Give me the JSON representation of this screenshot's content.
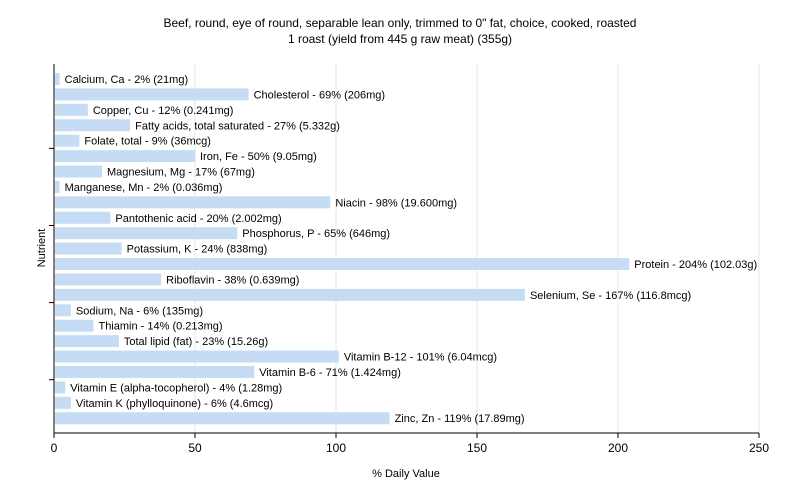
{
  "chart_data": {
    "type": "bar",
    "orientation": "horizontal",
    "title": "Beef, round, eye of round, separable lean only, trimmed to 0\" fat, choice, cooked, roasted",
    "subtitle": "1 roast (yield from 445 g raw meat) (355g)",
    "xlabel": "% Daily Value",
    "ylabel": "Nutrient",
    "xlim": [
      0,
      250
    ],
    "xticks": [
      0,
      50,
      100,
      150,
      200,
      250
    ],
    "grid": true,
    "bar_color": "#c6dcf5",
    "categories": [
      "Calcium, Ca",
      "Cholesterol",
      "Copper, Cu",
      "Fatty acids, total saturated",
      "Folate, total",
      "Iron, Fe",
      "Magnesium, Mg",
      "Manganese, Mn",
      "Niacin",
      "Pantothenic acid",
      "Phosphorus, P",
      "Potassium, K",
      "Protein",
      "Riboflavin",
      "Selenium, Se",
      "Sodium, Na",
      "Thiamin",
      "Total lipid (fat)",
      "Vitamin B-12",
      "Vitamin B-6",
      "Vitamin E (alpha-tocopherol)",
      "Vitamin K (phylloquinone)",
      "Zinc, Zn"
    ],
    "values": [
      2,
      69,
      12,
      27,
      9,
      50,
      17,
      2,
      98,
      20,
      65,
      24,
      204,
      38,
      167,
      6,
      14,
      23,
      101,
      71,
      4,
      6,
      119
    ],
    "labels": [
      "Calcium, Ca - 2% (21mg)",
      "Cholesterol - 69% (206mg)",
      "Copper, Cu - 12% (0.241mg)",
      "Fatty acids, total saturated - 27% (5.332g)",
      "Folate, total - 9% (36mcg)",
      "Iron, Fe - 50% (9.05mg)",
      "Magnesium, Mg - 17% (67mg)",
      "Manganese, Mn - 2% (0.036mg)",
      "Niacin - 98% (19.600mg)",
      "Pantothenic acid - 20% (2.002mg)",
      "Phosphorus, P - 65% (646mg)",
      "Potassium, K - 24% (838mg)",
      "Protein - 204% (102.03g)",
      "Riboflavin - 38% (0.639mg)",
      "Selenium, Se - 167% (116.8mcg)",
      "Sodium, Na - 6% (135mg)",
      "Thiamin - 14% (0.213mg)",
      "Total lipid (fat) - 23% (15.26g)",
      "Vitamin B-12 - 101% (6.04mcg)",
      "Vitamin B-6 - 71% (1.424mg)",
      "Vitamin E (alpha-tocopherol) - 4% (1.28mg)",
      "Vitamin K (phylloquinone) - 6% (4.6mcg)",
      "Zinc, Zn - 119% (17.89mg)"
    ]
  }
}
